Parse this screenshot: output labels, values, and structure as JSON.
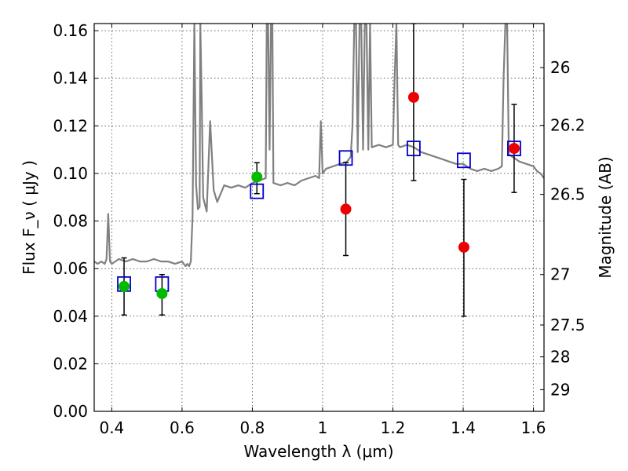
{
  "chart_data": {
    "type": "scatter",
    "xlabel": "Wavelength  λ (μm)",
    "ylabel": "Flux  F_ν  ( μJy )",
    "ylabel_right": "Magnitude (AB)",
    "xlim": [
      0.35,
      1.63
    ],
    "ylim": [
      0.0,
      0.163
    ],
    "grid": true,
    "x_ticks": [
      0.4,
      0.6,
      0.8,
      1.0,
      1.2,
      1.4,
      1.6
    ],
    "x_tick_labels": [
      "0.4",
      "0.6",
      "0.8",
      "1",
      "1.2",
      "1.4",
      "1.6"
    ],
    "y_ticks": [
      0.0,
      0.02,
      0.04,
      0.06,
      0.08,
      0.1,
      0.12,
      0.14,
      0.16
    ],
    "y_tick_labels": [
      "0.00",
      "0.02",
      "0.04",
      "0.06",
      "0.08",
      "0.10",
      "0.12",
      "0.14",
      "0.16"
    ],
    "right_ticks": [
      {
        "label": "26",
        "flux": 0.1445
      },
      {
        "label": "26.2",
        "flux": 0.1202
      },
      {
        "label": "26.5",
        "flux": 0.0912
      },
      {
        "label": "27",
        "flux": 0.0575
      },
      {
        "label": "27.5",
        "flux": 0.0363
      },
      {
        "label": "28",
        "flux": 0.0229
      },
      {
        "label": "29",
        "flux": 0.0091
      }
    ],
    "colors": {
      "spectrum": "#808080",
      "model_box": "#0000cc",
      "green_point": "#00bb00",
      "red_point": "#ee0000",
      "errorbar": "#000000"
    },
    "series": [
      {
        "name": "",
        "kind": "line",
        "x": [
          0.35,
          0.36,
          0.37,
          0.38,
          0.385,
          0.39,
          0.395,
          0.4,
          0.42,
          0.44,
          0.46,
          0.48,
          0.5,
          0.52,
          0.54,
          0.56,
          0.58,
          0.6,
          0.61,
          0.615,
          0.62,
          0.625,
          0.63,
          0.635,
          0.64,
          0.645,
          0.65,
          0.652,
          0.656,
          0.66,
          0.665,
          0.67,
          0.68,
          0.69,
          0.7,
          0.72,
          0.74,
          0.76,
          0.78,
          0.8,
          0.82,
          0.838,
          0.841,
          0.845,
          0.849,
          0.853,
          0.857,
          0.86,
          0.88,
          0.9,
          0.92,
          0.94,
          0.96,
          0.98,
          0.99,
          0.995,
          1.0,
          1.005,
          1.01,
          1.03,
          1.05,
          1.07,
          1.08,
          1.085,
          1.09,
          1.095,
          1.1,
          1.105,
          1.11,
          1.115,
          1.12,
          1.125,
          1.13,
          1.135,
          1.14,
          1.16,
          1.18,
          1.2,
          1.205,
          1.21,
          1.215,
          1.22,
          1.24,
          1.26,
          1.28,
          1.3,
          1.32,
          1.34,
          1.36,
          1.38,
          1.4,
          1.42,
          1.44,
          1.46,
          1.48,
          1.5,
          1.51,
          1.515,
          1.52,
          1.525,
          1.53,
          1.54,
          1.56,
          1.58,
          1.6,
          1.61,
          1.62,
          1.63
        ],
        "y": [
          0.063,
          0.062,
          0.063,
          0.062,
          0.064,
          0.083,
          0.063,
          0.062,
          0.064,
          0.063,
          0.064,
          0.063,
          0.063,
          0.064,
          0.063,
          0.063,
          0.062,
          0.063,
          0.061,
          0.062,
          0.061,
          0.063,
          0.082,
          0.163,
          0.095,
          0.085,
          0.086,
          0.163,
          0.13,
          0.09,
          0.087,
          0.084,
          0.122,
          0.093,
          0.088,
          0.095,
          0.094,
          0.095,
          0.094,
          0.096,
          0.097,
          0.098,
          0.163,
          0.163,
          0.11,
          0.163,
          0.163,
          0.096,
          0.095,
          0.096,
          0.095,
          0.097,
          0.098,
          0.099,
          0.098,
          0.122,
          0.1,
          0.101,
          0.102,
          0.103,
          0.104,
          0.105,
          0.107,
          0.12,
          0.163,
          0.163,
          0.109,
          0.163,
          0.163,
          0.11,
          0.163,
          0.163,
          0.11,
          0.163,
          0.111,
          0.112,
          0.111,
          0.112,
          0.14,
          0.163,
          0.112,
          0.111,
          0.112,
          0.111,
          0.109,
          0.108,
          0.107,
          0.106,
          0.105,
          0.104,
          0.104,
          0.102,
          0.101,
          0.102,
          0.101,
          0.102,
          0.103,
          0.14,
          0.163,
          0.163,
          0.108,
          0.107,
          0.105,
          0.104,
          0.103,
          0.101,
          0.1,
          0.098
        ]
      },
      {
        "name": "",
        "kind": "box",
        "x": [
          0.435,
          0.543,
          0.813,
          1.066,
          1.259,
          1.402,
          1.545
        ],
        "y": [
          0.0535,
          0.0535,
          0.0925,
          0.1065,
          0.1105,
          0.1055,
          0.1105
        ]
      },
      {
        "name": "",
        "kind": "point",
        "color": "green",
        "x": [
          0.435,
          0.543,
          0.813
        ],
        "y": [
          0.0525,
          0.0495,
          0.0985
        ],
        "err_low": [
          0.0405,
          0.0405,
          0.0915
        ],
        "err_high": [
          0.0645,
          0.0575,
          0.1045
        ]
      },
      {
        "name": "",
        "kind": "point",
        "color": "red",
        "x": [
          1.066,
          1.259,
          1.402,
          1.545
        ],
        "y": [
          0.085,
          0.132,
          0.069,
          0.1105
        ],
        "err_low": [
          0.0655,
          0.097,
          0.04,
          0.092
        ],
        "err_high": [
          0.1045,
          0.163,
          0.0975,
          0.129
        ]
      }
    ]
  }
}
